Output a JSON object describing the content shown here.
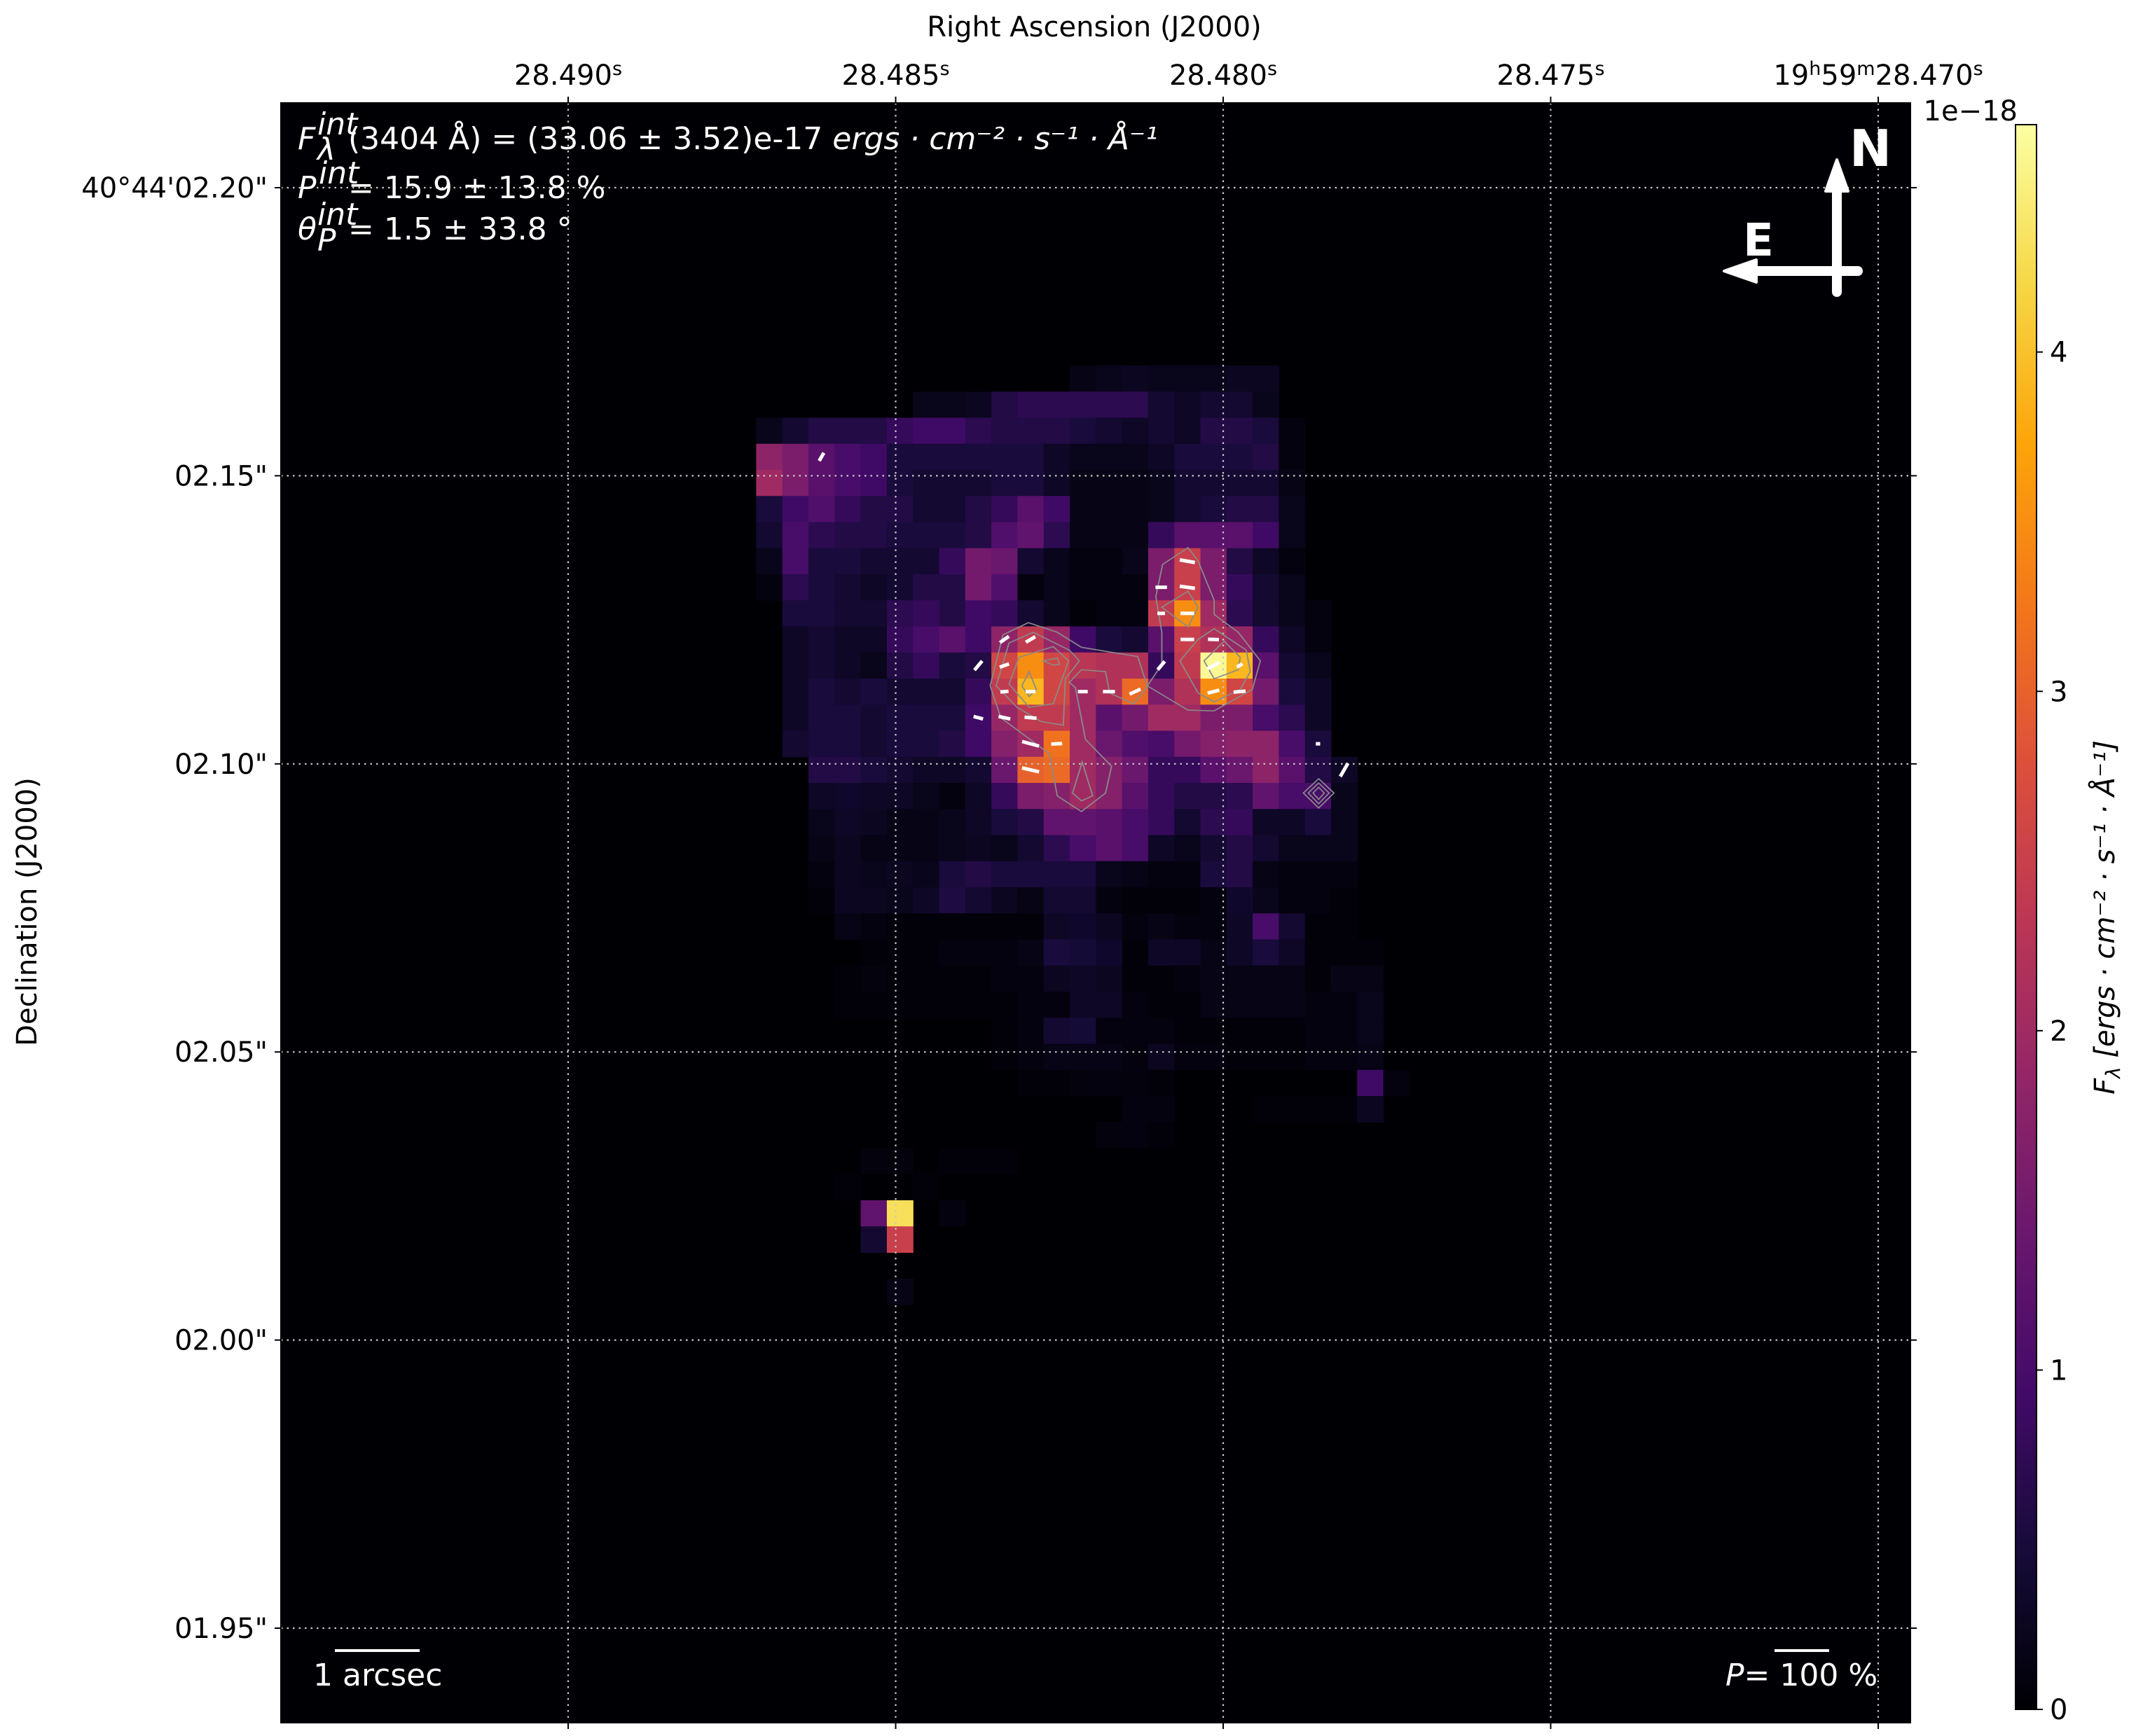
{
  "chart_data": {
    "type": "heatmap",
    "xlabel": "Right Ascension (J2000)",
    "ylabel": "Declination (J2000)",
    "x_ticks": [
      [
        {
          "t": "28.490"
        },
        {
          "t": "s",
          "sup": true
        }
      ],
      [
        {
          "t": "28.485"
        },
        {
          "t": "s",
          "sup": true
        }
      ],
      [
        {
          "t": "28.480"
        },
        {
          "t": "s",
          "sup": true
        }
      ],
      [
        {
          "t": "28.475"
        },
        {
          "t": "s",
          "sup": true
        }
      ],
      [
        {
          "t": "19"
        },
        {
          "t": "h",
          "sup": true
        },
        {
          "t": "59"
        },
        {
          "t": "m",
          "sup": true
        },
        {
          "t": "28.470"
        },
        {
          "t": "s",
          "sup": true
        }
      ]
    ],
    "y_ticks": [
      "40°44'02.20\"",
      "02.15\"",
      "02.10\"",
      "02.05\"",
      "02.00\"",
      "01.95\""
    ],
    "grid": true,
    "colormap": "inferno",
    "colorbar": {
      "label_symbol": "F",
      "label_sub": "λ",
      "label_units": " [ergs · cm⁻² · s⁻¹ · Å⁻¹]",
      "offset_text": "1e−18",
      "vmin": 0,
      "vmax": 4.67,
      "ticks": [
        "0",
        "1",
        "2",
        "3",
        "4"
      ],
      "colors": [
        "#000004",
        "#160b39",
        "#420a68",
        "#6a176e",
        "#932667",
        "#bc3754",
        "#dd513a",
        "#f37819",
        "#fca50a",
        "#f6d746",
        "#fcffa4"
      ]
    },
    "image": {
      "unit_scale": "1e-18",
      "row_start": 10,
      "col_start": 18,
      "values": [
        [
          0,
          0,
          0,
          0,
          0,
          0,
          0,
          0,
          0,
          0,
          0,
          0,
          0.15,
          0.2,
          0.25,
          0.2,
          0.2,
          0.2,
          0.25,
          0.25
        ],
        [
          0,
          0,
          0,
          0,
          0,
          0,
          0.2,
          0.2,
          0.25,
          0.6,
          0.7,
          0.7,
          0.7,
          0.7,
          0.7,
          0.4,
          0.3,
          0.4,
          0.4,
          0.2
        ],
        [
          0.2,
          0.4,
          0.6,
          0.6,
          0.6,
          0.8,
          0.9,
          0.9,
          0.7,
          0.6,
          0.6,
          0.6,
          0.5,
          0.4,
          0.3,
          0.4,
          0.3,
          0.6,
          0.6,
          0.5,
          0.1
        ],
        [
          1.8,
          1.6,
          1.2,
          1.0,
          0.9,
          0.5,
          0.5,
          0.5,
          0.5,
          0.5,
          0.5,
          0.3,
          0.2,
          0.2,
          0.2,
          0.3,
          0.5,
          0.5,
          0.5,
          0.6,
          0.1
        ],
        [
          2.0,
          1.6,
          1.2,
          1.0,
          0.9,
          0.5,
          0.4,
          0.4,
          0.4,
          0.5,
          0.5,
          0.3,
          0.15,
          0.15,
          0.15,
          0.2,
          0.4,
          0.4,
          0.4,
          0.4,
          0.15
        ],
        [
          0.5,
          0.9,
          1.1,
          0.8,
          0.6,
          0.6,
          0.4,
          0.4,
          0.6,
          0.8,
          1.2,
          0.9,
          0.15,
          0.15,
          0.15,
          0.2,
          0.4,
          0.5,
          0.6,
          0.6,
          0.2
        ],
        [
          0.4,
          1.0,
          0.7,
          0.6,
          0.6,
          0.5,
          0.5,
          0.5,
          0.6,
          1.1,
          1.3,
          0.7,
          0.15,
          0.15,
          0.15,
          0.8,
          1.2,
          1.2,
          1.2,
          0.9,
          0.2
        ],
        [
          0.2,
          1.0,
          0.5,
          0.5,
          0.4,
          0.4,
          0.4,
          0.8,
          1.5,
          1.4,
          0.4,
          0.2,
          0.1,
          0.1,
          0.2,
          1.6,
          2.5,
          1.6,
          0.6,
          0.3,
          0.1
        ],
        [
          0.1,
          0.7,
          0.5,
          0.4,
          0.3,
          0.4,
          0.6,
          0.6,
          1.5,
          1.1,
          0.1,
          0.2,
          0.1,
          0.1,
          0.1,
          1.6,
          2.5,
          1.6,
          0.8,
          0.4,
          0.2
        ],
        [
          0,
          0.5,
          0.5,
          0.4,
          0.4,
          0.7,
          0.8,
          0.6,
          0.9,
          0.8,
          0.4,
          0.2,
          0.05,
          0.1,
          0.1,
          2.4,
          3.5,
          2.0,
          0.7,
          0.4,
          0.2,
          0.1
        ],
        [
          0,
          0.3,
          0.4,
          0.3,
          0.3,
          0.8,
          1.0,
          1.2,
          0.9,
          1.8,
          2.4,
          1.9,
          0.9,
          0.5,
          0.4,
          1.2,
          2.5,
          2.2,
          1.9,
          0.8,
          0.3,
          0.1
        ],
        [
          0,
          0.3,
          0.4,
          0.3,
          0.2,
          0.6,
          0.8,
          0.5,
          0.6,
          2.6,
          3.5,
          2.6,
          2.3,
          2.2,
          2.2,
          0.8,
          2.4,
          4.6,
          3.9,
          1.2,
          0.4,
          0.2
        ],
        [
          0,
          0.3,
          0.5,
          0.4,
          0.5,
          0.4,
          0.4,
          0.4,
          0.8,
          2.4,
          3.9,
          2.6,
          2.0,
          2.2,
          3.1,
          1.6,
          2.2,
          3.5,
          2.6,
          1.5,
          0.5,
          0.3
        ],
        [
          0,
          0.3,
          0.5,
          0.5,
          0.4,
          0.5,
          0.5,
          0.5,
          0.9,
          1.9,
          2.4,
          2.4,
          2.0,
          1.2,
          1.5,
          2.0,
          2.0,
          1.6,
          1.6,
          1.0,
          0.7,
          0.3
        ],
        [
          0,
          0.4,
          0.5,
          0.5,
          0.4,
          0.5,
          0.5,
          0.6,
          0.9,
          1.7,
          2.0,
          3.2,
          2.0,
          1.4,
          1.1,
          1.0,
          1.5,
          1.7,
          1.8,
          1.8,
          1.0,
          0.5
        ],
        [
          0,
          0,
          0.6,
          0.6,
          0.5,
          0.4,
          0.3,
          0.3,
          0.4,
          1.4,
          3.0,
          3.1,
          2.0,
          1.7,
          1.4,
          0.8,
          0.8,
          1.2,
          1.4,
          1.8,
          1.2,
          0.6,
          0.3
        ],
        [
          0,
          0,
          0.3,
          0.35,
          0.3,
          0.3,
          0.2,
          0.1,
          0.3,
          0.8,
          1.6,
          1.7,
          2.0,
          1.7,
          1.2,
          0.8,
          0.6,
          0.6,
          0.7,
          1.3,
          1.0,
          1.0,
          0.2
        ],
        [
          0,
          0,
          0.2,
          0.3,
          0.25,
          0.15,
          0.15,
          0.2,
          0.3,
          0.5,
          0.6,
          1.3,
          1.3,
          1.2,
          1.0,
          0.8,
          0.4,
          0.7,
          0.8,
          0.3,
          0.3,
          0.5,
          0.2
        ],
        [
          0,
          0,
          0.15,
          0.25,
          0.15,
          0.15,
          0.15,
          0.2,
          0.25,
          0.2,
          0.4,
          0.7,
          1.0,
          1.2,
          1.0,
          0.3,
          0.2,
          0.4,
          0.6,
          0.4,
          0.2,
          0.2,
          0.2
        ],
        [
          0,
          0,
          0.1,
          0.25,
          0.2,
          0.25,
          0.2,
          0.5,
          0.6,
          0.5,
          0.5,
          0.5,
          0.5,
          0.2,
          0.15,
          0.1,
          0.1,
          0.5,
          0.6,
          0.15,
          0.1,
          0.1,
          0.1
        ],
        [
          0,
          0,
          0.05,
          0.25,
          0.25,
          0.2,
          0.3,
          0.55,
          0.4,
          0.25,
          0.15,
          0.4,
          0.4,
          0.1,
          0.05,
          0.05,
          0.05,
          0.1,
          0.35,
          0.2,
          0.1,
          0.1,
          0.05
        ],
        [
          0,
          0,
          0,
          0.15,
          0.1,
          0.05,
          0.05,
          0.05,
          0.05,
          0.05,
          0.05,
          0.3,
          0.35,
          0.25,
          0.1,
          0.15,
          0.1,
          0.1,
          0.3,
          1.0,
          0.4,
          0.05,
          0.05
        ],
        [
          0,
          0,
          0,
          0,
          0.05,
          0.05,
          0.05,
          0.1,
          0.1,
          0.1,
          0.15,
          0.5,
          0.45,
          0.35,
          0.05,
          0.3,
          0.3,
          0.15,
          0.3,
          0.5,
          0.3,
          0.05,
          0.05,
          0.05
        ],
        [
          0,
          0,
          0,
          0.05,
          0.08,
          0.05,
          0.05,
          0.05,
          0.05,
          0.1,
          0.1,
          0.25,
          0.3,
          0.25,
          0.05,
          0.05,
          0.1,
          0.15,
          0.15,
          0.15,
          0.15,
          0.05,
          0.15,
          0.15
        ],
        [
          0,
          0,
          0,
          0.05,
          0.05,
          0.05,
          0.05,
          0.05,
          0.05,
          0.05,
          0.1,
          0.1,
          0.3,
          0.3,
          0.1,
          0.05,
          0.05,
          0.15,
          0.15,
          0.15,
          0.15,
          0.1,
          0.1,
          0.2
        ],
        [
          0,
          0,
          0,
          0,
          0,
          0,
          0,
          0,
          0,
          0.05,
          0.1,
          0.4,
          0.45,
          0.1,
          0.1,
          0.1,
          0.05,
          0.05,
          0.05,
          0.05,
          0.05,
          0.1,
          0.1,
          0.2
        ],
        [
          0,
          0,
          0,
          0,
          0,
          0,
          0,
          0,
          0,
          0.05,
          0.1,
          0.15,
          0.15,
          0.15,
          0.1,
          0.25,
          0.1,
          0.1,
          0.05,
          0.05,
          0.05,
          0.1,
          0.1,
          0.15
        ],
        [
          0,
          0,
          0,
          0,
          0,
          0,
          0,
          0,
          0,
          0,
          0.05,
          0.05,
          0.08,
          0.1,
          0.08,
          0.05,
          0,
          0,
          0,
          0,
          0,
          0,
          0,
          0.9,
          0.1
        ],
        [
          0,
          0,
          0,
          0,
          0,
          0,
          0,
          0,
          0,
          0,
          0,
          0,
          0,
          0,
          0.1,
          0.1,
          0,
          0,
          0,
          0.05,
          0.05,
          0.05,
          0.05,
          0.25
        ],
        [
          0,
          0,
          0,
          0,
          0,
          0,
          0,
          0,
          0,
          0,
          0,
          0,
          0,
          0.08,
          0.1,
          0.05
        ],
        [
          0,
          0,
          0,
          0,
          0.08,
          0.08,
          0,
          0.05,
          0.05,
          0.05
        ],
        [
          0,
          0,
          0,
          0.05,
          0,
          0,
          0.05
        ],
        [
          0,
          0,
          0,
          0,
          1.3,
          4.3,
          0,
          0.1
        ],
        [
          0,
          0,
          0,
          0,
          0.4,
          2.5
        ],
        [],
        [
          0,
          0,
          0,
          0,
          0,
          0.15
        ]
      ]
    },
    "vectors": [
      {
        "col": 20,
        "row": 13,
        "p": 17,
        "pa": 150
      },
      {
        "col": 34,
        "row": 17,
        "p": 28,
        "pa": 80
      },
      {
        "col": 33,
        "row": 18,
        "p": 21,
        "pa": 90
      },
      {
        "col": 34,
        "row": 18,
        "p": 28,
        "pa": 82
      },
      {
        "col": 33,
        "row": 19,
        "p": 14,
        "pa": 90
      },
      {
        "col": 34,
        "row": 19,
        "p": 25,
        "pa": 90
      },
      {
        "col": 27,
        "row": 20,
        "p": 20,
        "pa": 125
      },
      {
        "col": 28,
        "row": 20,
        "p": 20,
        "pa": 120
      },
      {
        "col": 34,
        "row": 20,
        "p": 25,
        "pa": 90
      },
      {
        "col": 35,
        "row": 20,
        "p": 20,
        "pa": 88
      },
      {
        "col": 26,
        "row": 21,
        "p": 22,
        "pa": 140
      },
      {
        "col": 27,
        "row": 21,
        "p": 18,
        "pa": 110
      },
      {
        "col": 33,
        "row": 21,
        "p": 20,
        "pa": 140
      },
      {
        "col": 35,
        "row": 21,
        "p": 25,
        "pa": 118
      },
      {
        "col": 36,
        "row": 21,
        "p": 12,
        "pa": 120
      },
      {
        "col": 27,
        "row": 22,
        "p": 15,
        "pa": 95
      },
      {
        "col": 28,
        "row": 22,
        "p": 18,
        "pa": 90
      },
      {
        "col": 30,
        "row": 22,
        "p": 18,
        "pa": 90
      },
      {
        "col": 31,
        "row": 22,
        "p": 22,
        "pa": 90
      },
      {
        "col": 32,
        "row": 22,
        "p": 22,
        "pa": 115
      },
      {
        "col": 35,
        "row": 22,
        "p": 22,
        "pa": 105
      },
      {
        "col": 36,
        "row": 22,
        "p": 22,
        "pa": 95
      },
      {
        "col": 26,
        "row": 23,
        "p": 18,
        "pa": 75
      },
      {
        "col": 27,
        "row": 23,
        "p": 22,
        "pa": 78
      },
      {
        "col": 28,
        "row": 23,
        "p": 22,
        "pa": 85
      },
      {
        "col": 28,
        "row": 24,
        "p": 32,
        "pa": 75
      },
      {
        "col": 29,
        "row": 24,
        "p": 20,
        "pa": 93
      },
      {
        "col": 39,
        "row": 24,
        "p": 8,
        "pa": 90
      },
      {
        "col": 28,
        "row": 25,
        "p": 32,
        "pa": 77
      },
      {
        "col": 40,
        "row": 25,
        "p": 28,
        "pa": 150
      }
    ]
  },
  "annotations": {
    "flux": {
      "symbol": "F",
      "sup": "int",
      "sub": "λ",
      "value": "(3404 Å) = (33.06 ± 3.52)e-17 ",
      "units": "ergs · cm⁻² · s⁻¹ · Å⁻¹"
    },
    "polarization": {
      "symbol": "P",
      "sup": "int",
      "value": " = 15.9 ± 13.8 %"
    },
    "angle": {
      "symbol": "θ",
      "sub": "P",
      "sup": "int",
      "value": " = 1.5 ± 33.8 °"
    },
    "compass": {
      "north": "N",
      "east": "E"
    },
    "scale_bar": "1 arcsec",
    "p_scale": {
      "symbol": "P",
      "value": "= 100 %"
    }
  }
}
